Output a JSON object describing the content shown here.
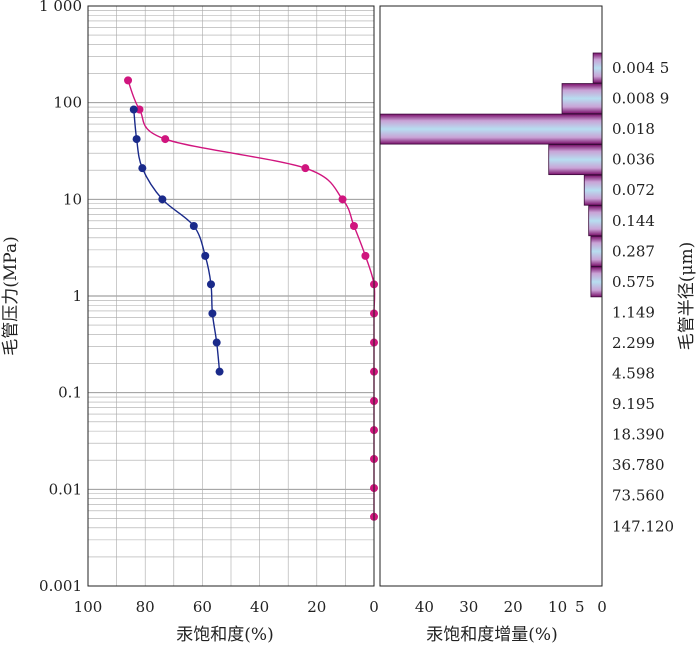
{
  "chart_data": [
    {
      "type": "line",
      "name": "capillary-pressure-curves",
      "xlabel": "汞饱和度(%)",
      "ylabel": "毛管压力(MPa)",
      "xlim": [
        100,
        0
      ],
      "x_reversed": true,
      "xticks": [
        100,
        80,
        60,
        40,
        20,
        0
      ],
      "ylim": [
        0.001,
        1000
      ],
      "yscale": "log",
      "yticks": [
        0.001,
        0.01,
        0.1,
        1,
        10,
        100,
        1000
      ],
      "ytick_labels": [
        "0.001",
        "0.01",
        "0.1",
        "1",
        "10",
        "100",
        "1 000"
      ],
      "grid": true,
      "series": [
        {
          "color": "#d0157e",
          "x": [
            86,
            82,
            73,
            24,
            11,
            7,
            3,
            0,
            0,
            0,
            0,
            0,
            0,
            0,
            0,
            0
          ],
          "y": [
            170,
            85,
            42,
            21,
            10,
            5.3,
            2.6,
            1.32,
            0.66,
            0.33,
            0.165,
            0.082,
            0.041,
            0.0206,
            0.0103,
            0.0052
          ]
        },
        {
          "color": "#1a2a8a",
          "x": [
            84,
            83,
            81,
            74,
            63,
            59,
            57,
            56.5,
            55,
            54
          ],
          "y": [
            85,
            42,
            21,
            10,
            5.3,
            2.6,
            1.32,
            0.66,
            0.33,
            0.165
          ]
        }
      ]
    },
    {
      "type": "bar",
      "orientation": "horizontal",
      "name": "pore-throat-histogram",
      "xlabel": "汞饱和度增量(%)",
      "ylabel": "毛管半径(μm)",
      "xlim": [
        50,
        0
      ],
      "x_reversed": true,
      "xticks": [
        40,
        30,
        20,
        10,
        5,
        0
      ],
      "yticks": [
        "0.004 5",
        "0.008 9",
        "0.018",
        "0.036",
        "0.072",
        "0.144",
        "0.287",
        "0.575",
        "1.149",
        "2.299",
        "4.598",
        "9.195",
        "18.390",
        "36.780",
        "73.560",
        "147.120"
      ],
      "categories": [
        "0.004 5",
        "0.008 9",
        "0.018",
        "0.036",
        "0.072",
        "0.144",
        "0.287",
        "0.575"
      ],
      "values": [
        2,
        9,
        50,
        12,
        4,
        3,
        2.5,
        2.5
      ]
    }
  ]
}
